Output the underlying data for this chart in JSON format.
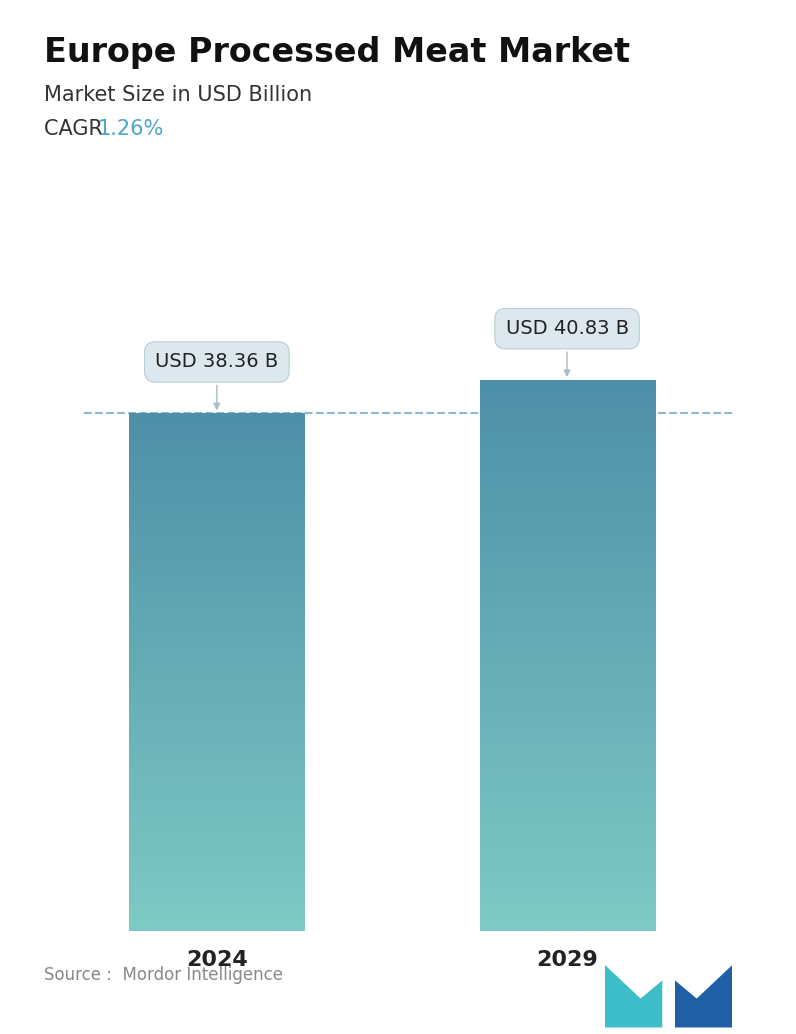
{
  "title": "Europe Processed Meat Market",
  "subtitle": "Market Size in USD Billion",
  "cagr_label": "CAGR ",
  "cagr_value": "1.26%",
  "cagr_color": "#4da6c8",
  "categories": [
    "2024",
    "2029"
  ],
  "values": [
    38.36,
    40.83
  ],
  "bar_labels": [
    "USD 38.36 B",
    "USD 40.83 B"
  ],
  "bar_top_color": "#4e8fa8",
  "bar_bottom_color": "#7ecac4",
  "dashed_line_color": "#6aaabf",
  "source_text": "Source :  Mordor Intelligence",
  "background_color": "#ffffff",
  "title_fontsize": 24,
  "subtitle_fontsize": 15,
  "cagr_fontsize": 15,
  "bar_label_fontsize": 14,
  "tick_fontsize": 16,
  "source_fontsize": 12,
  "ylim_max": 46,
  "ylim_min": 0
}
